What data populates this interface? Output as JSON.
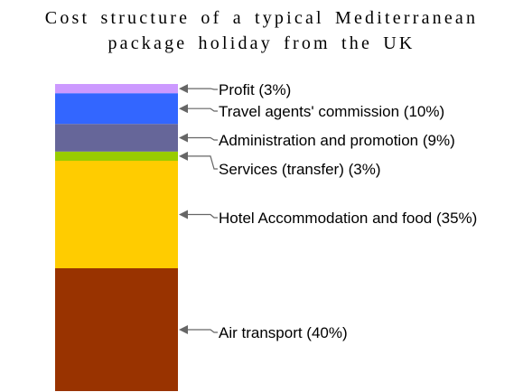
{
  "chart_data": {
    "type": "bar",
    "stacked": true,
    "title_lines": [
      "Cost structure of a typical Mediterranean",
      "package holiday from the UK"
    ],
    "unit": "%",
    "segments": [
      {
        "name": "Air transport",
        "label": "Air transport (40%)",
        "value": 40,
        "color": "#993300"
      },
      {
        "name": "Hotel Accommodation and food",
        "label": "Hotel Accommodation and food (35%)",
        "value": 35,
        "color": "#ffcc00"
      },
      {
        "name": "Services (transfer)",
        "label": "Services (transfer) (3%)",
        "value": 3,
        "color": "#99cc00"
      },
      {
        "name": "Administration and promotion",
        "label": "Administration and promotion (9%)",
        "value": 9,
        "color": "#666699"
      },
      {
        "name": "Travel agents' commission",
        "label": "Travel agents' commission (10%)",
        "value": 10,
        "color": "#3366ff"
      },
      {
        "name": "Profit",
        "label": "Profit (3%)",
        "value": 3,
        "color": "#cc99ff"
      }
    ]
  }
}
